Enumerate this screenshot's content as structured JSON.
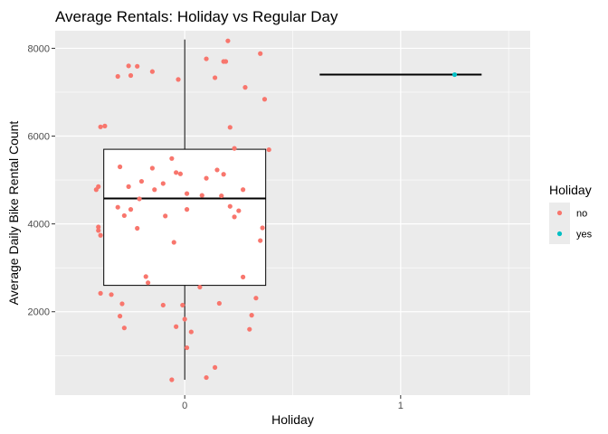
{
  "chart_data": {
    "type": "scatter",
    "title": "Average Rentals: Holiday vs Regular Day",
    "xlabel": "Holiday",
    "ylabel": "Average Daily Bike Rental Count",
    "categories": [
      "0",
      "1"
    ],
    "xlim": [
      -0.6,
      1.6
    ],
    "ylim": [
      100,
      8400
    ],
    "y_ticks": [
      2000,
      4000,
      6000,
      8000
    ],
    "y_tick_labels": [
      "2000",
      "4000",
      "6000",
      "8000"
    ],
    "y_minor_ticks": [
      1000,
      3000,
      5000,
      7000
    ],
    "x_minor_ticks": [
      0.5,
      1.5
    ],
    "grid": true,
    "panel_background": "#ebebeb",
    "legend": {
      "title": "Holiday",
      "position": "right",
      "entries": [
        {
          "label": "no",
          "color": "#f8766d"
        },
        {
          "label": "yes",
          "color": "#00bfc4"
        }
      ]
    },
    "boxplots": [
      {
        "x": 0,
        "width": 0.75,
        "ymin": 450,
        "q1": 2600,
        "median": 4580,
        "q3": 5700,
        "ymax": 8200
      },
      {
        "x": 1,
        "width": 0.75,
        "ymin": 7400,
        "q1": 7400,
        "median": 7400,
        "q3": 7400,
        "ymax": 7400
      }
    ],
    "series": [
      {
        "name": "no",
        "color": "#f8766d",
        "points": [
          [
            0.2,
            8170
          ],
          [
            0.35,
            7880
          ],
          [
            0.1,
            7760
          ],
          [
            0.18,
            7700
          ],
          [
            0.19,
            7700
          ],
          [
            -0.26,
            7600
          ],
          [
            -0.22,
            7590
          ],
          [
            -0.15,
            7470
          ],
          [
            -0.31,
            7360
          ],
          [
            -0.25,
            7380
          ],
          [
            0.14,
            7330
          ],
          [
            -0.03,
            7290
          ],
          [
            0.28,
            7110
          ],
          [
            0.37,
            6840
          ],
          [
            -0.37,
            6230
          ],
          [
            -0.39,
            6210
          ],
          [
            0.21,
            6200
          ],
          [
            0.39,
            5690
          ],
          [
            0.23,
            5720
          ],
          [
            -0.06,
            5490
          ],
          [
            -0.3,
            5300
          ],
          [
            -0.15,
            5270
          ],
          [
            0.15,
            5230
          ],
          [
            -0.04,
            5170
          ],
          [
            0.18,
            5130
          ],
          [
            -0.02,
            5140
          ],
          [
            0.1,
            5040
          ],
          [
            -0.2,
            4970
          ],
          [
            -0.1,
            4920
          ],
          [
            -0.26,
            4850
          ],
          [
            -0.4,
            4850
          ],
          [
            -0.41,
            4780
          ],
          [
            -0.14,
            4780
          ],
          [
            0.27,
            4780
          ],
          [
            0.01,
            4690
          ],
          [
            0.08,
            4650
          ],
          [
            0.17,
            4640
          ],
          [
            -0.21,
            4570
          ],
          [
            -0.31,
            4380
          ],
          [
            -0.25,
            4330
          ],
          [
            0.21,
            4400
          ],
          [
            0.01,
            4330
          ],
          [
            0.25,
            4300
          ],
          [
            -0.28,
            4190
          ],
          [
            -0.09,
            4180
          ],
          [
            0.23,
            4160
          ],
          [
            -0.4,
            3930
          ],
          [
            -0.4,
            3850
          ],
          [
            -0.22,
            3900
          ],
          [
            0.36,
            3910
          ],
          [
            -0.39,
            3740
          ],
          [
            -0.05,
            3580
          ],
          [
            0.35,
            3620
          ],
          [
            -0.18,
            2800
          ],
          [
            0.27,
            2790
          ],
          [
            -0.17,
            2660
          ],
          [
            0.07,
            2560
          ],
          [
            -0.39,
            2420
          ],
          [
            -0.34,
            2390
          ],
          [
            0.33,
            2310
          ],
          [
            -0.1,
            2150
          ],
          [
            0.16,
            2190
          ],
          [
            -0.29,
            2180
          ],
          [
            -0.01,
            2150
          ],
          [
            -0.3,
            1900
          ],
          [
            0.31,
            1920
          ],
          [
            0.0,
            1830
          ],
          [
            -0.04,
            1660
          ],
          [
            -0.28,
            1630
          ],
          [
            0.3,
            1600
          ],
          [
            0.03,
            1540
          ],
          [
            0.01,
            1180
          ],
          [
            0.14,
            730
          ],
          [
            0.1,
            500
          ],
          [
            -0.06,
            450
          ]
        ]
      },
      {
        "name": "yes",
        "color": "#00bfc4",
        "points": [
          [
            1.25,
            7400
          ]
        ]
      }
    ]
  }
}
